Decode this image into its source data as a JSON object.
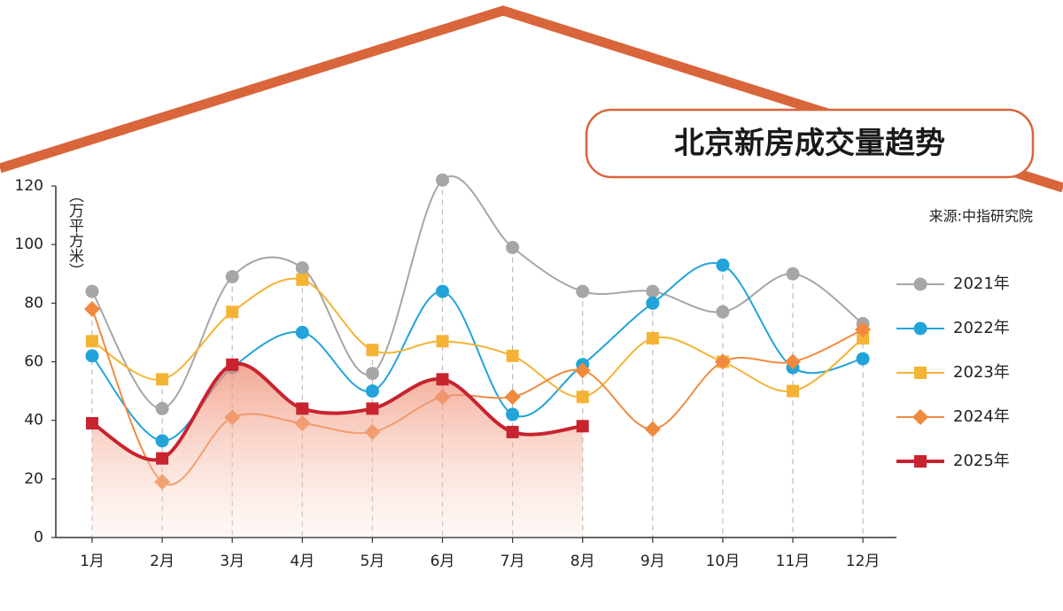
{
  "chart_data": {
    "type": "line",
    "title": "北京新房成交量趋势",
    "source": "来源:中指研究院",
    "y_label": "（万平方米）",
    "categories": [
      "1月",
      "2月",
      "3月",
      "4月",
      "5月",
      "6月",
      "7月",
      "8月",
      "9月",
      "10月",
      "11月",
      "12月"
    ],
    "ylim": [
      0,
      120
    ],
    "yticks": [
      0,
      20,
      40,
      60,
      80,
      100,
      120
    ],
    "series": [
      {
        "name": "2021年",
        "color": "#a6a6a6",
        "marker": "circle",
        "line_width": 2,
        "values": [
          84,
          44,
          89,
          92,
          56,
          122,
          99,
          84,
          84,
          77,
          90,
          73
        ]
      },
      {
        "name": "2022年",
        "color": "#22a3d9",
        "marker": "circle",
        "line_width": 2,
        "values": [
          62,
          33,
          58,
          70,
          50,
          84,
          42,
          59,
          80,
          93,
          58,
          61
        ]
      },
      {
        "name": "2023年",
        "color": "#f5b335",
        "marker": "square",
        "line_width": 2,
        "values": [
          67,
          54,
          77,
          88,
          64,
          67,
          62,
          48,
          68,
          60,
          50,
          68
        ]
      },
      {
        "name": "2024年",
        "color": "#ef8a3e",
        "marker": "diamond",
        "line_width": 2,
        "values": [
          78,
          19,
          41,
          39,
          36,
          48,
          48,
          57,
          37,
          60,
          60,
          71
        ]
      },
      {
        "name": "2025年",
        "color": "#c8242f",
        "marker": "square",
        "line_width": 4,
        "fill_area": true,
        "values": [
          39,
          27,
          59,
          44,
          44,
          54,
          36,
          38,
          null,
          null,
          null,
          null
        ]
      }
    ]
  }
}
